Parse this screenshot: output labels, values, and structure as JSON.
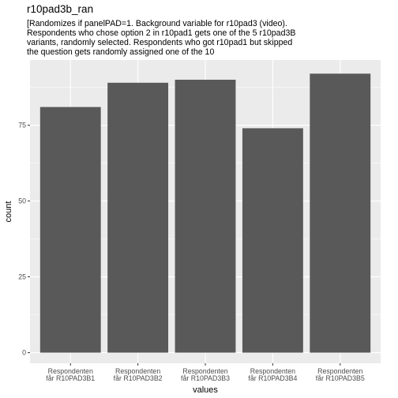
{
  "chart_data": {
    "type": "bar",
    "title": "r10pad3b_ran",
    "subtitle_lines": [
      "[Randomizes if panelPAD=1. Background variable for r10pad3 (video).",
      "Respondents who chose option 2 in r10pad1 gets one of the 5 r10pad3B",
      "variants, randomly selected. Respondents who got r10pad1 but skipped",
      "the question gets randomly assigned one of the 10"
    ],
    "categories": [
      [
        "Respondenten",
        "får R10PAD3B1"
      ],
      [
        "Respondenten",
        "får R10PAD3B2"
      ],
      [
        "Respondenten",
        "får R10PAD3B3"
      ],
      [
        "Respondenten",
        "får R10PAD3B4"
      ],
      [
        "Respondenten",
        "får R10PAD3B5"
      ]
    ],
    "values": [
      81,
      89,
      90,
      74,
      92
    ],
    "xlabel": "values",
    "ylabel": "count",
    "ylim": [
      -3.5,
      96.5
    ],
    "yticks": [
      0,
      25,
      50,
      75
    ],
    "grid": true,
    "colors": {
      "panel_background": "#ebebeb",
      "grid_major": "#ffffff",
      "bar_fill": "#595959",
      "tick_text": "#4d4d4d"
    }
  }
}
